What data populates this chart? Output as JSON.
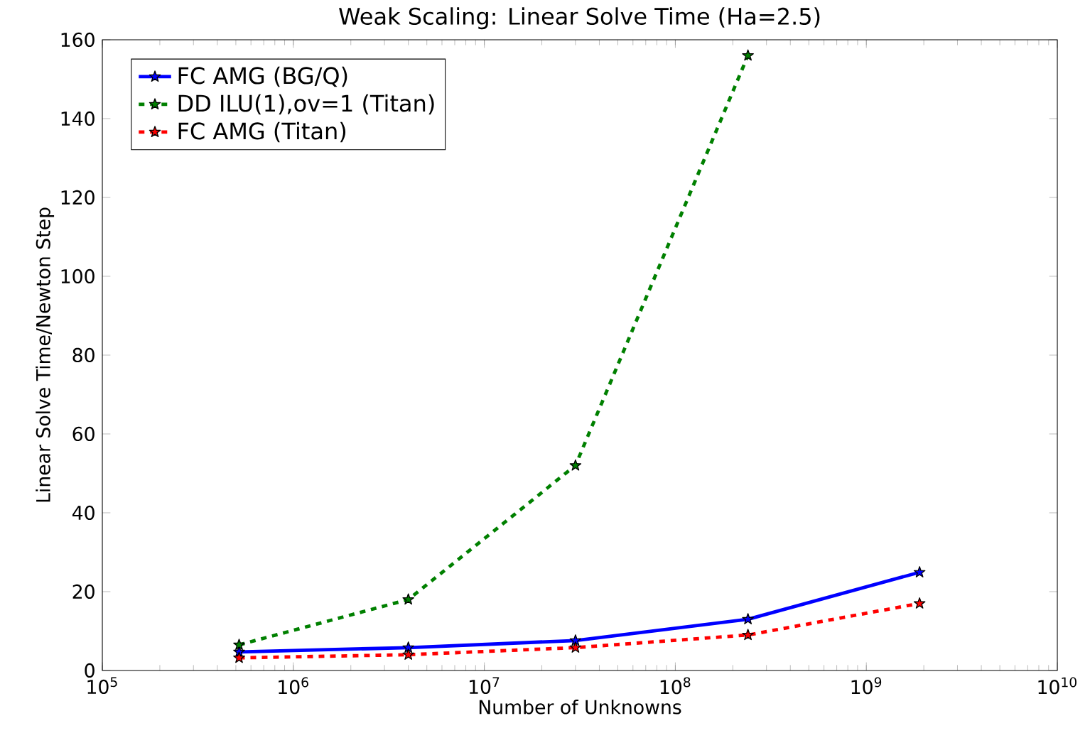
{
  "chart_data": {
    "type": "line",
    "title": "Weak Scaling: Linear Solve Time (Ha=2.5)",
    "xlabel": "Number of Unknowns",
    "ylabel": "Linear Solve Time/Newton Step",
    "log": "x",
    "xlim": [
      100000,
      10000000000
    ],
    "xticks": [
      {
        "value": 100000,
        "label": "10$^{5}$"
      },
      {
        "value": 1000000,
        "label": "10$^{6}$"
      },
      {
        "value": 10000000,
        "label": "10$^{7}$"
      },
      {
        "value": 100000000,
        "label": "10$^{8}$"
      },
      {
        "value": 1000000000,
        "label": "10$^{9}$"
      },
      {
        "value": 10000000000,
        "label": "10$^{10}$"
      }
    ],
    "ylim": [
      0,
      160
    ],
    "yticks": [
      0,
      20,
      40,
      60,
      80,
      100,
      120,
      140,
      160
    ],
    "legend": "top left",
    "marker": "star",
    "grid": false,
    "series": [
      {
        "name": "FC AMG (BG/Q)",
        "color": "#0000ff",
        "line_style": "solid",
        "x": [
          520000,
          4000000,
          30000000,
          240000000,
          1900000000
        ],
        "values": [
          4.7,
          5.8,
          7.6,
          13,
          24.9
        ]
      },
      {
        "name": "DD ILU(1),ov=1 (Titan)",
        "color": "#008000",
        "line_style": "dashed",
        "x": [
          520000,
          4000000,
          30000000,
          240000000
        ],
        "values": [
          6.5,
          18,
          52,
          156
        ]
      },
      {
        "name": "FC AMG (Titan)",
        "color": "#ff0000",
        "line_style": "dashed",
        "x": [
          520000,
          4000000,
          30000000,
          240000000,
          1900000000
        ],
        "values": [
          3.2,
          4.0,
          5.8,
          9.0,
          17
        ]
      }
    ]
  }
}
